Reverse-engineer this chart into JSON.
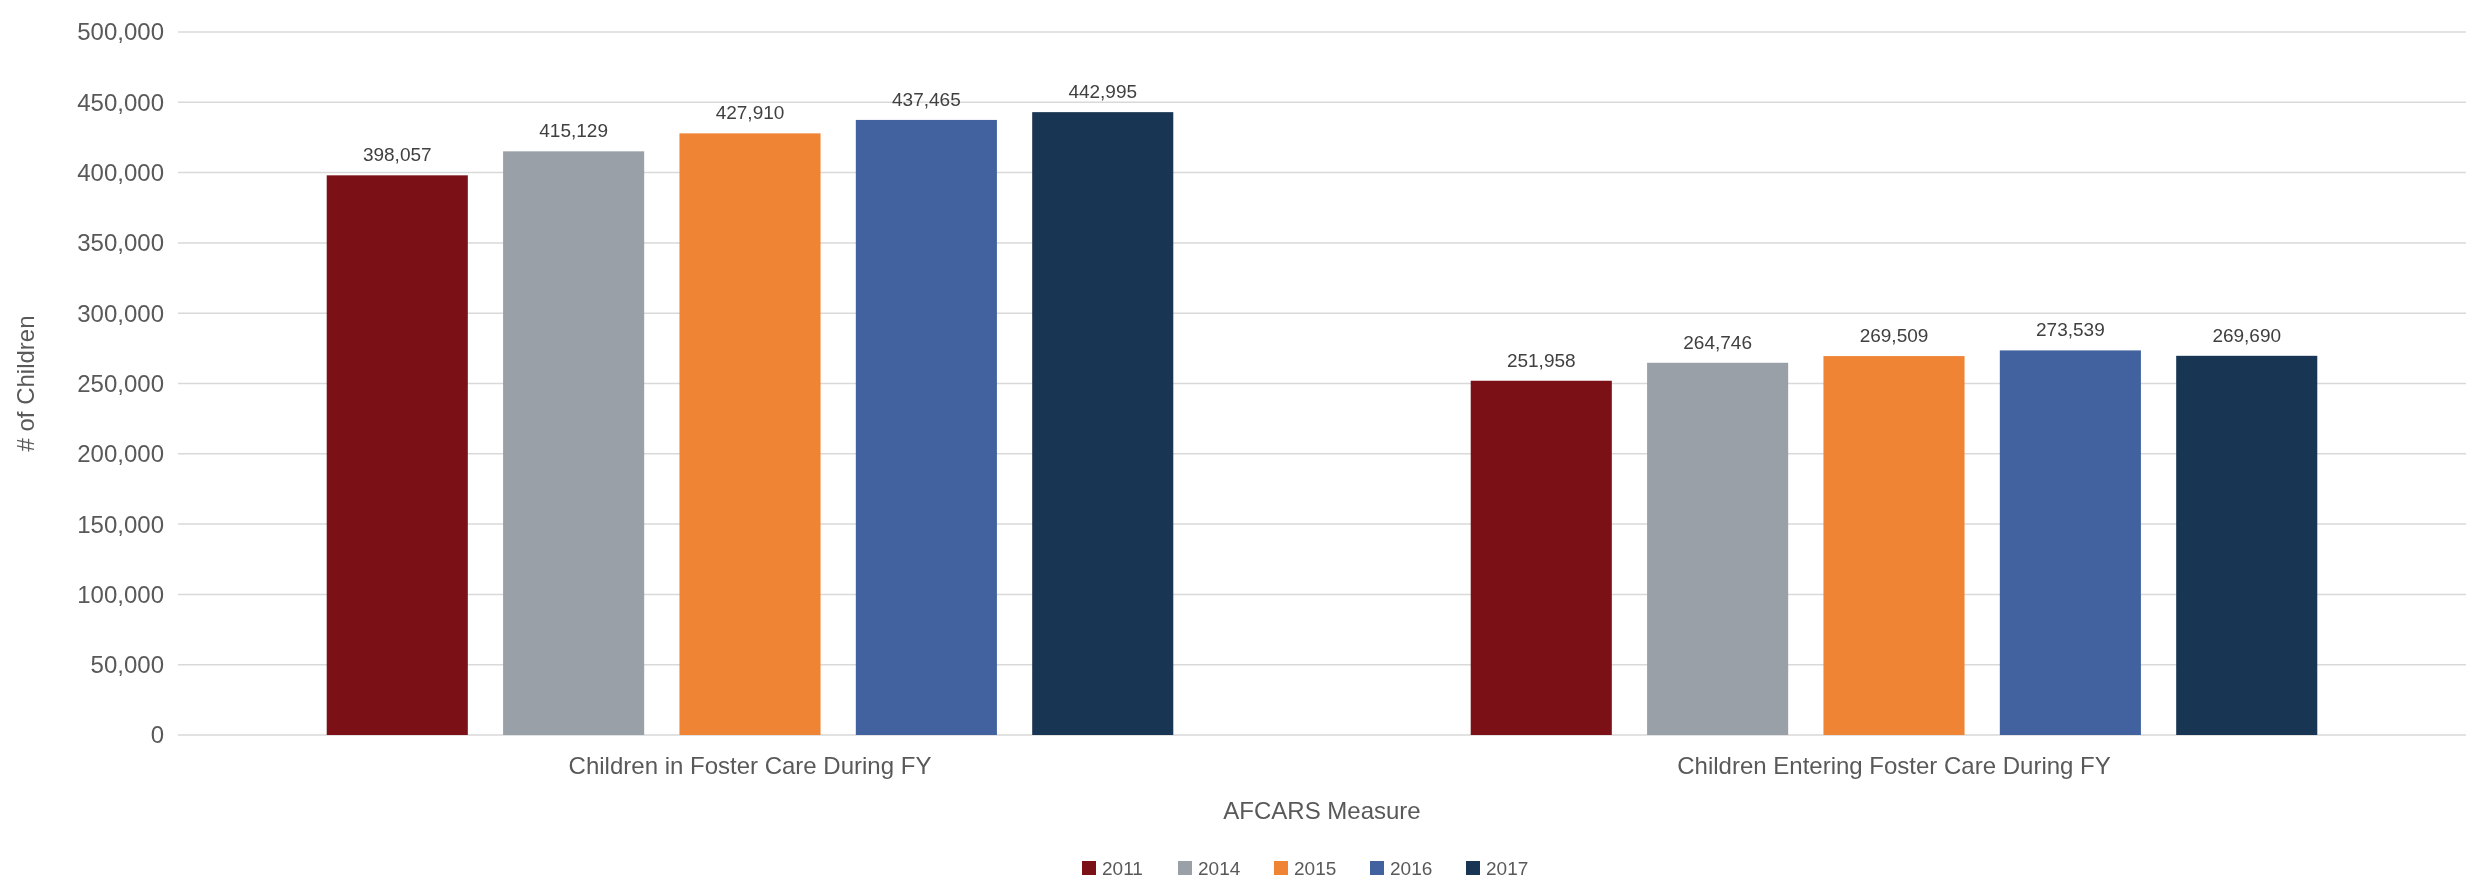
{
  "chart_data": {
    "type": "bar",
    "xlabel": "AFCARS Measure",
    "ylabel": "# of Children",
    "categories": [
      "Children in Foster Care During FY",
      "Children Entering Foster Care During FY"
    ],
    "series": [
      {
        "name": "2011",
        "color": "#7b1116",
        "values": [
          398057,
          251958
        ],
        "value_labels": [
          "398,057",
          "251,958"
        ]
      },
      {
        "name": "2014",
        "color": "#99a0a8",
        "values": [
          415129,
          264746
        ],
        "value_labels": [
          "415,129",
          "264,746"
        ]
      },
      {
        "name": "2015",
        "color": "#ee8434",
        "values": [
          427910,
          269509
        ],
        "value_labels": [
          "427,910",
          "269,509"
        ]
      },
      {
        "name": "2016",
        "color": "#41629e",
        "values": [
          437465,
          273539
        ],
        "value_labels": [
          "437,465",
          "273,539"
        ]
      },
      {
        "name": "2017",
        "color": "#183554",
        "values": [
          442995,
          269690
        ],
        "value_labels": [
          "442,995",
          "269,690"
        ]
      }
    ],
    "ylim": [
      0,
      500000
    ],
    "yticks": [
      {
        "value": 0,
        "label": "0"
      },
      {
        "value": 50000,
        "label": "50,000"
      },
      {
        "value": 100000,
        "label": "100,000"
      },
      {
        "value": 150000,
        "label": "150,000"
      },
      {
        "value": 200000,
        "label": "200,000"
      },
      {
        "value": 250000,
        "label": "250,000"
      },
      {
        "value": 300000,
        "label": "300,000"
      },
      {
        "value": 350000,
        "label": "350,000"
      },
      {
        "value": 400000,
        "label": "400,000"
      },
      {
        "value": 450000,
        "label": "450,000"
      },
      {
        "value": 500000,
        "label": "500,000"
      }
    ],
    "grid": "y",
    "legend": "bottom"
  }
}
